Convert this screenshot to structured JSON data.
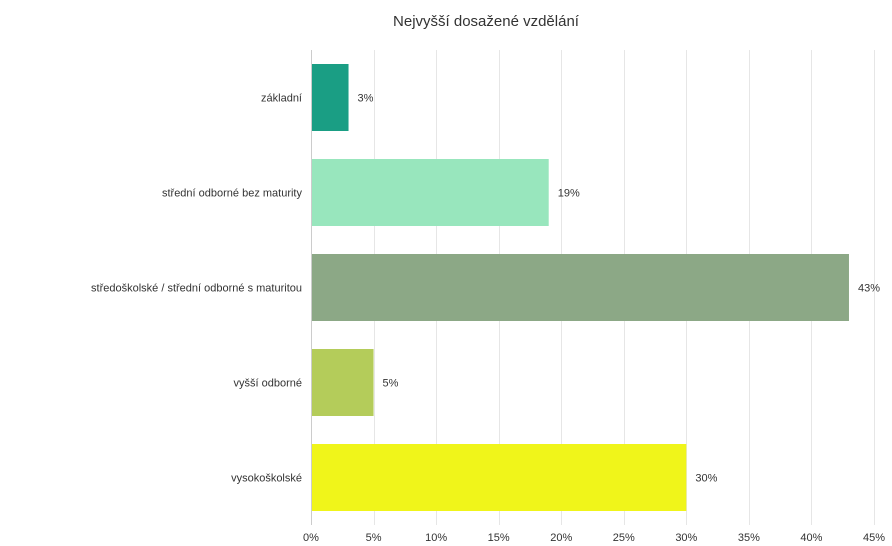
{
  "chart_data": {
    "type": "bar",
    "orientation": "horizontal",
    "title": "Nejvyšší dosažené vzdělání",
    "categories": [
      "základní",
      "střední odborné bez maturity",
      "středoškolské / střední odborné s maturitou",
      "vyšší odborné",
      "vysokoškolské"
    ],
    "values": [
      3,
      19,
      43,
      5,
      30
    ],
    "data_labels": [
      "3%",
      "19%",
      "43%",
      "5%",
      "30%"
    ],
    "bar_colors": [
      "#1a9e84",
      "#98e6bd",
      "#8ca886",
      "#b4cc5a",
      "#f0f51a"
    ],
    "xlim": [
      0,
      45
    ],
    "x_ticks": [
      0,
      5,
      10,
      15,
      20,
      25,
      30,
      35,
      40,
      45
    ],
    "x_tick_labels": [
      "0%",
      "5%",
      "10%",
      "15%",
      "20%",
      "25%",
      "30%",
      "35%",
      "40%",
      "45%"
    ],
    "grid": true,
    "legend": "none"
  }
}
